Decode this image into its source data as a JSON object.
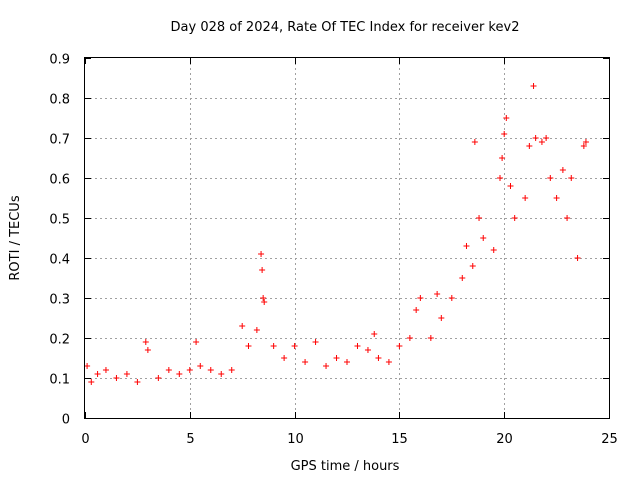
{
  "chart_data": {
    "type": "scatter",
    "title": "Day 028 of 2024, Rate Of TEC Index for receiver kev2",
    "xlabel": "GPS time / hours",
    "ylabel": "ROTI / TECUs",
    "xlim": [
      0,
      25
    ],
    "ylim": [
      0,
      0.9
    ],
    "xticks": [
      "0",
      "5",
      "10",
      "15",
      "20",
      "25"
    ],
    "yticks": [
      "0",
      "0.1",
      "0.2",
      "0.3",
      "0.4",
      "0.5",
      "0.6",
      "0.7",
      "0.8",
      "0.9"
    ],
    "xtick_values": [
      0,
      5,
      10,
      15,
      20,
      25
    ],
    "ytick_values": [
      0,
      0.1,
      0.2,
      0.3,
      0.4,
      0.5,
      0.6,
      0.7,
      0.8,
      0.9
    ],
    "grid": true,
    "legend": "none",
    "marker": "plus",
    "color": "#ff0000",
    "series": [
      {
        "values": [
          [
            0.1,
            0.13
          ],
          [
            0.3,
            0.09
          ],
          [
            0.6,
            0.11
          ],
          [
            1.0,
            0.12
          ],
          [
            1.5,
            0.1
          ],
          [
            2.0,
            0.11
          ],
          [
            2.5,
            0.09
          ],
          [
            2.9,
            0.19
          ],
          [
            3.0,
            0.17
          ],
          [
            3.5,
            0.1
          ],
          [
            4.0,
            0.12
          ],
          [
            4.5,
            0.11
          ],
          [
            5.0,
            0.12
          ],
          [
            5.3,
            0.19
          ],
          [
            5.5,
            0.13
          ],
          [
            6.0,
            0.12
          ],
          [
            6.5,
            0.11
          ],
          [
            7.0,
            0.12
          ],
          [
            7.5,
            0.23
          ],
          [
            7.8,
            0.18
          ],
          [
            8.2,
            0.22
          ],
          [
            8.4,
            0.41
          ],
          [
            8.45,
            0.37
          ],
          [
            8.5,
            0.3
          ],
          [
            8.55,
            0.29
          ],
          [
            9.0,
            0.18
          ],
          [
            9.5,
            0.15
          ],
          [
            10.0,
            0.18
          ],
          [
            10.5,
            0.14
          ],
          [
            11.0,
            0.19
          ],
          [
            11.5,
            0.13
          ],
          [
            12.0,
            0.15
          ],
          [
            12.5,
            0.14
          ],
          [
            13.0,
            0.18
          ],
          [
            13.5,
            0.17
          ],
          [
            13.8,
            0.21
          ],
          [
            14.0,
            0.15
          ],
          [
            14.5,
            0.14
          ],
          [
            15.0,
            0.18
          ],
          [
            15.5,
            0.2
          ],
          [
            15.8,
            0.27
          ],
          [
            16.0,
            0.3
          ],
          [
            16.5,
            0.2
          ],
          [
            16.8,
            0.31
          ],
          [
            17.0,
            0.25
          ],
          [
            17.5,
            0.3
          ],
          [
            18.0,
            0.35
          ],
          [
            18.2,
            0.43
          ],
          [
            18.5,
            0.38
          ],
          [
            18.6,
            0.69
          ],
          [
            18.8,
            0.5
          ],
          [
            19.0,
            0.45
          ],
          [
            19.5,
            0.42
          ],
          [
            19.8,
            0.6
          ],
          [
            19.9,
            0.65
          ],
          [
            20.0,
            0.71
          ],
          [
            20.1,
            0.75
          ],
          [
            20.3,
            0.58
          ],
          [
            20.5,
            0.5
          ],
          [
            21.0,
            0.55
          ],
          [
            21.2,
            0.68
          ],
          [
            21.4,
            0.83
          ],
          [
            21.5,
            0.7
          ],
          [
            21.8,
            0.69
          ],
          [
            22.0,
            0.7
          ],
          [
            22.2,
            0.6
          ],
          [
            22.5,
            0.55
          ],
          [
            22.8,
            0.62
          ],
          [
            23.0,
            0.5
          ],
          [
            23.2,
            0.6
          ],
          [
            23.5,
            0.4
          ],
          [
            23.8,
            0.68
          ],
          [
            23.9,
            0.69
          ]
        ]
      }
    ]
  }
}
